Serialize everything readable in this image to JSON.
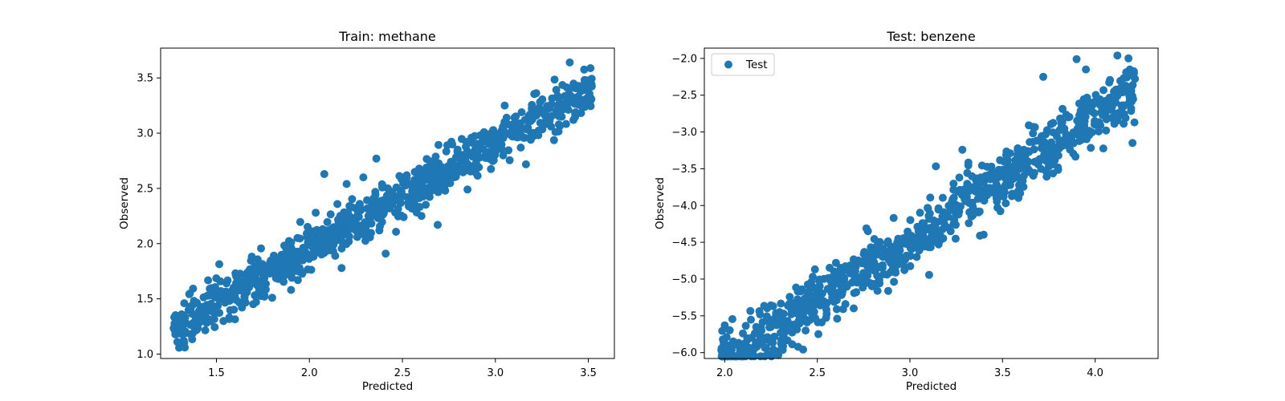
{
  "colors": {
    "marker": "#1f77b4",
    "axes": "#000000",
    "background": "#ffffff"
  },
  "chart_data": [
    {
      "type": "scatter",
      "title": "Train: methane",
      "xlabel": "Predicted",
      "ylabel": "Observed",
      "xlim": [
        1.2,
        3.64
      ],
      "ylim": [
        0.96,
        3.77
      ],
      "xticks": [
        "1.5",
        "2.0",
        "2.5",
        "3.0",
        "3.5"
      ],
      "yticks": [
        "1.0",
        "1.5",
        "2.0",
        "2.5",
        "3.0",
        "3.5"
      ],
      "grid": false,
      "legend": null,
      "series": [
        {
          "n_points": 900,
          "x_range": [
            1.27,
            3.52
          ],
          "trend": {
            "intercept": 0.03,
            "slope": 0.96
          },
          "noise_sd": 0.1,
          "x": [
            2.08,
            2.2,
            2.29,
            2.69,
            2.36,
            2.41,
            1.33,
            1.29,
            3.4,
            2.73,
            2.85,
            3.05,
            1.8
          ],
          "y": [
            2.63,
            2.54,
            2.6,
            2.17,
            2.77,
            1.91,
            1.06,
            1.11,
            3.64,
            2.48,
            2.49,
            3.25,
            1.51
          ]
        }
      ]
    },
    {
      "type": "scatter",
      "title": "Test: benzene",
      "xlabel": "Predicted",
      "ylabel": "Observed",
      "xlim": [
        1.89,
        4.34
      ],
      "ylim": [
        -6.08,
        -1.86
      ],
      "xticks": [
        "2.0",
        "2.5",
        "3.0",
        "3.5",
        "4.0"
      ],
      "yticks": [
        "−6.0",
        "−5.5",
        "−5.0",
        "−4.5",
        "−4.0",
        "−3.5",
        "−3.0",
        "−2.5",
        "−2.0"
      ],
      "grid": false,
      "legend": "upper left",
      "series": [
        {
          "name": "Test",
          "n_points": 900,
          "x_range": [
            1.98,
            4.22
          ],
          "trend": {
            "intercept": -9.5,
            "slope": 1.68
          },
          "noise_sd": 0.2,
          "x": [
            1.99,
            2.0,
            2.17,
            2.31,
            2.43,
            3.22,
            3.9,
            3.95,
            4.12,
            4.18,
            3.72
          ],
          "y": [
            -5.82,
            -5.63,
            -5.65,
            -5.53,
            -5.3,
            -4.35,
            -2.01,
            -2.15,
            -1.96,
            -2.0,
            -2.25
          ]
        }
      ]
    }
  ]
}
